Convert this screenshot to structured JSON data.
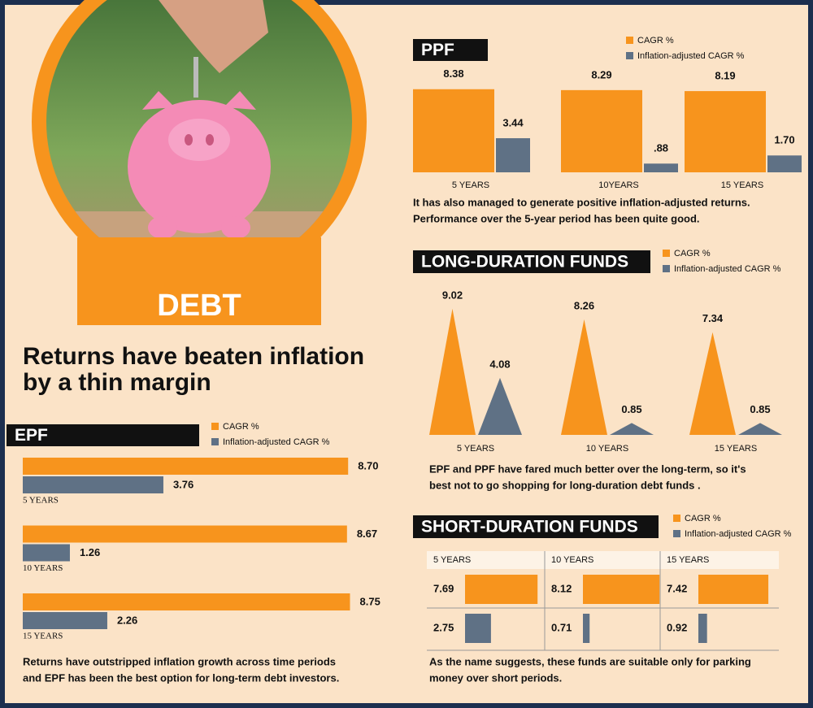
{
  "header": {
    "title": "DEBT",
    "headline": [
      "Returns have beaten inflation",
      "by a thin margin"
    ]
  },
  "chart_data": [
    {
      "type": "bar",
      "orientation": "horizontal",
      "title": "EPF",
      "categories": [
        "5 YEARS",
        "10 YEARS",
        "15 YEARS"
      ],
      "series": [
        {
          "name": "CAGR %",
          "color": "#f7941d",
          "values": [
            8.7,
            8.67,
            8.75
          ],
          "value_labels": [
            "8.70",
            "8.67",
            "8.75"
          ]
        },
        {
          "name": "Inflation-adjusted CAGR %",
          "color": "#5f7185",
          "values": [
            3.76,
            1.26,
            2.26
          ]
        }
      ],
      "note": [
        "Returns have outstripped inflation growth across time periods",
        "and EPF has been the best option for long-term debt investors."
      ]
    },
    {
      "type": "bar",
      "orientation": "vertical",
      "title": "PPF",
      "categories": [
        "5 YEARS",
        "10YEARS",
        "15 YEARS"
      ],
      "series": [
        {
          "name": "CAGR %",
          "color": "#f7941d",
          "values": [
            8.38,
            8.29,
            8.19
          ]
        },
        {
          "name": "Inflation-adjusted CAGR %",
          "color": "#5f7185",
          "values": [
            3.44,
            0.88,
            1.7
          ],
          "value_labels": [
            "3.44",
            ".88",
            "1.70"
          ]
        }
      ],
      "note": [
        "It has also managed to generate positive inflation-adjusted returns.",
        "Performance over the 5-year period has been quite good."
      ]
    },
    {
      "type": "triangle",
      "title": "LONG-DURATION FUNDS",
      "categories": [
        "5 YEARS",
        "10 YEARS",
        "15 YEARS"
      ],
      "series": [
        {
          "name": "CAGR %",
          "color": "#f7941d",
          "values": [
            9.02,
            8.26,
            7.34
          ]
        },
        {
          "name": "Inflation-adjusted CAGR %",
          "color": "#5f7185",
          "values": [
            4.08,
            0.85,
            0.85
          ]
        }
      ],
      "note": [
        "EPF and PPF have fared much better over the long-term, so it's",
        "best not to go shopping for long-duration debt funds ."
      ]
    },
    {
      "type": "bar-table",
      "title": "SHORT-DURATION FUNDS",
      "categories": [
        "5 YEARS",
        "10 YEARS",
        "15 YEARS"
      ],
      "series": [
        {
          "name": "CAGR %",
          "color": "#f7941d",
          "values": [
            7.69,
            8.12,
            7.42
          ]
        },
        {
          "name": "Inflation-adjusted CAGR %",
          "color": "#5f7185",
          "values": [
            2.75,
            0.71,
            0.92
          ]
        }
      ],
      "note": [
        "As the name suggests, these funds are suitable only for parking",
        "money over short periods."
      ]
    }
  ]
}
